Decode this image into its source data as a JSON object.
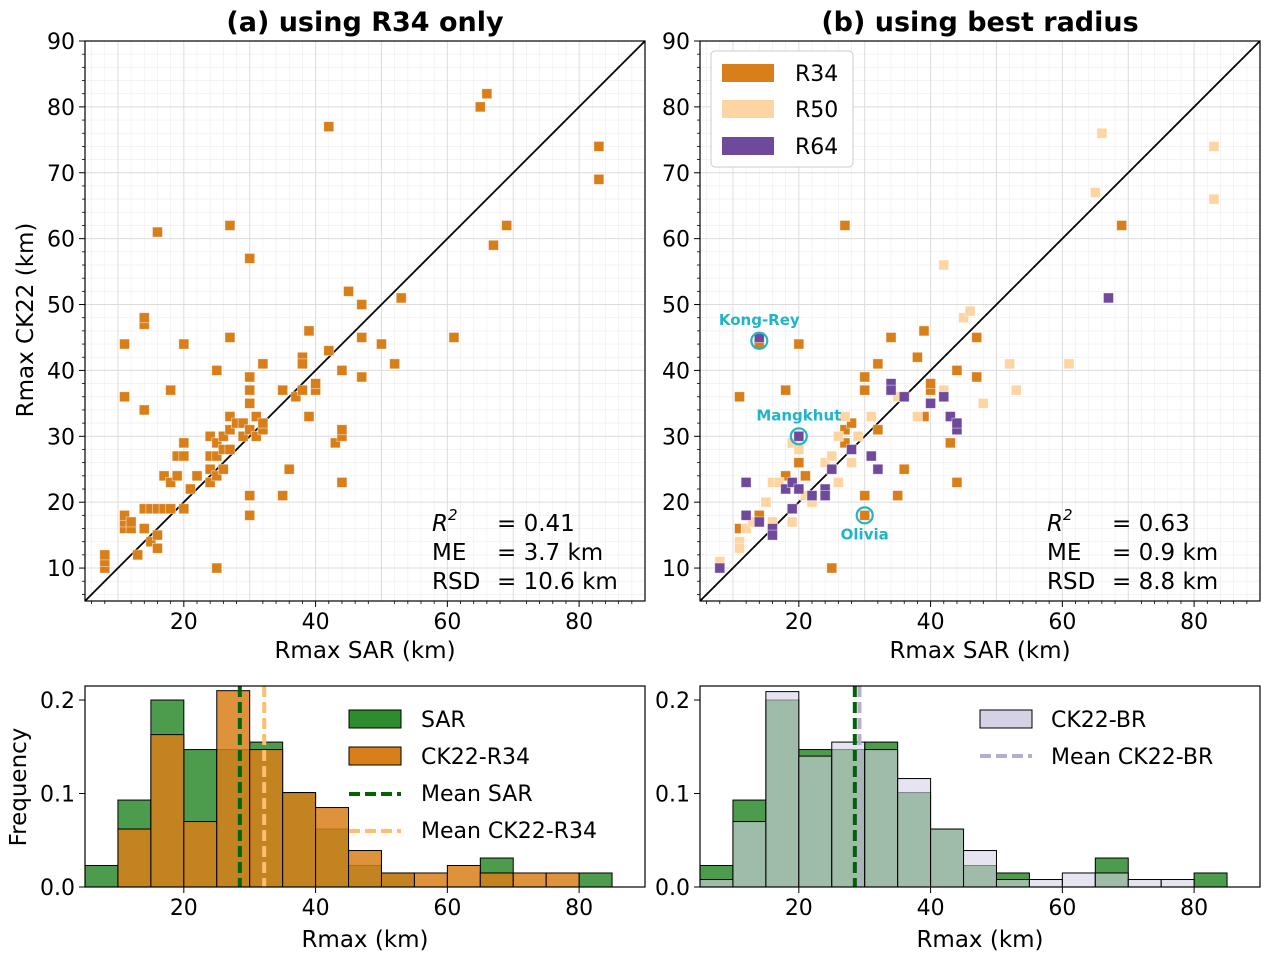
{
  "colors": {
    "r34": "#d87f1a",
    "r50": "#fdd5a2",
    "r64": "#6f4a9c",
    "sar": "#2e8b2e",
    "ck22br": "#d6d2e6",
    "annot": "#1fb5c8",
    "mean_sar": "#006400",
    "mean_r34": "#fdbf6f",
    "mean_br": "#b4aecf"
  },
  "chart_data": [
    {
      "type": "scatter",
      "title": "(a) using R34 only",
      "xlabel": "Rmax SAR (km)",
      "ylabel": "Rmax CK22 (km)",
      "xlim": [
        5,
        90
      ],
      "ylim": [
        5,
        90
      ],
      "xticks": [
        "20",
        "40",
        "60",
        "80"
      ],
      "yticks": [
        "10",
        "20",
        "30",
        "40",
        "50",
        "60",
        "70",
        "80",
        "90"
      ],
      "grid": true,
      "reference_line": "y = x",
      "series": [
        {
          "name": "R34",
          "points": [
            [
              8,
              10
            ],
            [
              8,
              11
            ],
            [
              8,
              12
            ],
            [
              11,
              16
            ],
            [
              11,
              17
            ],
            [
              11,
              18
            ],
            [
              12,
              16
            ],
            [
              12,
              17
            ],
            [
              13,
              12
            ],
            [
              14,
              16
            ],
            [
              14,
              19
            ],
            [
              15,
              14
            ],
            [
              15,
              19
            ],
            [
              16,
              13
            ],
            [
              16,
              15
            ],
            [
              16,
              19
            ],
            [
              17,
              19
            ],
            [
              17,
              24
            ],
            [
              18,
              19
            ],
            [
              18,
              23
            ],
            [
              19,
              27
            ],
            [
              19,
              24
            ],
            [
              20,
              19
            ],
            [
              20,
              27
            ],
            [
              20,
              29
            ],
            [
              21,
              22
            ],
            [
              22,
              24
            ],
            [
              24,
              23
            ],
            [
              24,
              25
            ],
            [
              24,
              27
            ],
            [
              24,
              30
            ],
            [
              25,
              24
            ],
            [
              25,
              27
            ],
            [
              25,
              29
            ],
            [
              26,
              25
            ],
            [
              26,
              28
            ],
            [
              26,
              30
            ],
            [
              27,
              28
            ],
            [
              27,
              31
            ],
            [
              27,
              33
            ],
            [
              28,
              32
            ],
            [
              29,
              30
            ],
            [
              29,
              32
            ],
            [
              30,
              31
            ],
            [
              30,
              35
            ],
            [
              30,
              37
            ],
            [
              30,
              39
            ],
            [
              31,
              30
            ],
            [
              31,
              33
            ],
            [
              32,
              31
            ],
            [
              32,
              32
            ],
            [
              35,
              37
            ],
            [
              36,
              25
            ],
            [
              37,
              36
            ],
            [
              38,
              42
            ],
            [
              38,
              37
            ],
            [
              39,
              33
            ],
            [
              39,
              46
            ],
            [
              40,
              37
            ],
            [
              40,
              38
            ],
            [
              42,
              43
            ],
            [
              43,
              29
            ],
            [
              44,
              23
            ],
            [
              44,
              30
            ],
            [
              44,
              31
            ],
            [
              44,
              40
            ],
            [
              47,
              39
            ],
            [
              47,
              45
            ],
            [
              47,
              50
            ],
            [
              50,
              44
            ],
            [
              52,
              41
            ],
            [
              53,
              51
            ],
            [
              61,
              45
            ],
            [
              65,
              80
            ],
            [
              66,
              82
            ],
            [
              67,
              59
            ],
            [
              69,
              62
            ],
            [
              83,
              69
            ],
            [
              83,
              74
            ],
            [
              11,
              36
            ],
            [
              11,
              44
            ],
            [
              14,
              34
            ],
            [
              14,
              47
            ],
            [
              14,
              48
            ],
            [
              16,
              61
            ],
            [
              18,
              37
            ],
            [
              20,
              44
            ],
            [
              25,
              10
            ],
            [
              25,
              40
            ],
            [
              27,
              45
            ],
            [
              27,
              62
            ],
            [
              30,
              57
            ],
            [
              30,
              18
            ],
            [
              30,
              21
            ],
            [
              32,
              41
            ],
            [
              35,
              21
            ],
            [
              38,
              41
            ],
            [
              42,
              77
            ],
            [
              45,
              52
            ]
          ]
        }
      ],
      "stats": {
        "r2_label": "R",
        "r2_sup": "2",
        "r2_value": "= 0.41",
        "me_label": "ME",
        "me_value": "= 3.7 km",
        "rsd_label": "RSD",
        "rsd_value": "= 10.6 km"
      }
    },
    {
      "type": "scatter",
      "title": "(b) using best radius",
      "xlabel": "Rmax SAR (km)",
      "xlim": [
        5,
        90
      ],
      "ylim": [
        5,
        90
      ],
      "xticks": [
        "20",
        "40",
        "60",
        "80"
      ],
      "yticks": [
        "10",
        "20",
        "30",
        "40",
        "50",
        "60",
        "70",
        "80",
        "90"
      ],
      "grid": true,
      "reference_line": "y = x",
      "legend_position": "upper-left",
      "series": [
        {
          "name": "R34",
          "points": [
            [
              11,
              16
            ],
            [
              11,
              36
            ],
            [
              14,
              18
            ],
            [
              14,
              44
            ],
            [
              18,
              37
            ],
            [
              18,
              24
            ],
            [
              20,
              26
            ],
            [
              20,
              44
            ],
            [
              21,
              24
            ],
            [
              25,
              10
            ],
            [
              27,
              29
            ],
            [
              27,
              62
            ],
            [
              27,
              31
            ],
            [
              28,
              32
            ],
            [
              30,
              37
            ],
            [
              30,
              39
            ],
            [
              30,
              21
            ],
            [
              30,
              18
            ],
            [
              32,
              41
            ],
            [
              32,
              31
            ],
            [
              34,
              45
            ],
            [
              35,
              21
            ],
            [
              36,
              25
            ],
            [
              38,
              42
            ],
            [
              39,
              33
            ],
            [
              39,
              46
            ],
            [
              40,
              37
            ],
            [
              40,
              38
            ],
            [
              43,
              29
            ],
            [
              44,
              23
            ],
            [
              44,
              40
            ],
            [
              47,
              39
            ],
            [
              47,
              45
            ],
            [
              69,
              62
            ]
          ]
        },
        {
          "name": "R50",
          "points": [
            [
              8,
              10
            ],
            [
              8,
              11
            ],
            [
              11,
              14
            ],
            [
              11,
              13
            ],
            [
              12,
              16
            ],
            [
              13,
              17
            ],
            [
              15,
              20
            ],
            [
              16,
              17
            ],
            [
              16,
              23
            ],
            [
              17,
              23
            ],
            [
              19,
              17
            ],
            [
              19,
              29
            ],
            [
              20,
              28
            ],
            [
              21,
              21
            ],
            [
              22,
              20
            ],
            [
              24,
              26
            ],
            [
              25,
              27
            ],
            [
              25,
              25
            ],
            [
              26,
              30
            ],
            [
              26,
              23
            ],
            [
              27,
              33
            ],
            [
              28,
              26
            ],
            [
              29,
              30
            ],
            [
              31,
              33
            ],
            [
              35,
              36
            ],
            [
              38,
              33
            ],
            [
              42,
              37
            ],
            [
              42,
              56
            ],
            [
              45,
              48
            ],
            [
              46,
              49
            ],
            [
              48,
              35
            ],
            [
              52,
              41
            ],
            [
              53,
              37
            ],
            [
              61,
              41
            ],
            [
              65,
              67
            ],
            [
              66,
              76
            ],
            [
              83,
              66
            ],
            [
              83,
              74
            ]
          ]
        },
        {
          "name": "R64",
          "points": [
            [
              8,
              10
            ],
            [
              12,
              18
            ],
            [
              12,
              23
            ],
            [
              14,
              17
            ],
            [
              14,
              45
            ],
            [
              16,
              16
            ],
            [
              16,
              15
            ],
            [
              18,
              22
            ],
            [
              19,
              23
            ],
            [
              19,
              19
            ],
            [
              20,
              30
            ],
            [
              20,
              22
            ],
            [
              22,
              21
            ],
            [
              24,
              22
            ],
            [
              24,
              21
            ],
            [
              25,
              25
            ],
            [
              28,
              28
            ],
            [
              31,
              27
            ],
            [
              32,
              25
            ],
            [
              34,
              38
            ],
            [
              34,
              37
            ],
            [
              36,
              36
            ],
            [
              40,
              35
            ],
            [
              42,
              36
            ],
            [
              43,
              33
            ],
            [
              44,
              31
            ],
            [
              44,
              32
            ],
            [
              67,
              51
            ]
          ]
        }
      ],
      "annotations": [
        {
          "text": "Kong-Rey",
          "x": 14,
          "y": 44.5
        },
        {
          "text": "Mangkhut",
          "x": 20,
          "y": 30
        },
        {
          "text": "Olivia",
          "x": 30,
          "y": 18
        }
      ],
      "stats": {
        "r2_label": "R",
        "r2_sup": "2",
        "r2_value": "= 0.63",
        "me_label": "ME",
        "me_value": "= 0.9 km",
        "rsd_label": "RSD",
        "rsd_value": "= 8.8 km"
      }
    },
    {
      "type": "bar",
      "subtype": "histogram",
      "xlabel": "Rmax (km)",
      "ylabel": "Frequency",
      "xlim": [
        5,
        90
      ],
      "ylim": [
        0,
        0.215
      ],
      "xticks": [
        "20",
        "40",
        "60",
        "80"
      ],
      "yticks": [
        "0.0",
        "0.1",
        "0.2"
      ],
      "legend_position": "upper-right",
      "bin_edges": [
        5,
        10,
        15,
        20,
        25,
        30,
        35,
        40,
        45,
        50,
        55,
        60,
        65,
        70,
        75,
        80,
        85
      ],
      "series": [
        {
          "name": "SAR",
          "values": [
            0.023,
            0.093,
            0.2,
            0.147,
            0.147,
            0.155,
            0.101,
            0.062,
            0.023,
            0.015,
            0.0,
            0.0,
            0.031,
            0.0,
            0.0,
            0.015
          ]
        },
        {
          "name": "CK22-R34",
          "values": [
            0.0,
            0.062,
            0.163,
            0.07,
            0.21,
            0.147,
            0.101,
            0.085,
            0.039,
            0.015,
            0.015,
            0.023,
            0.015,
            0.015,
            0.015,
            0.0
          ]
        }
      ],
      "means": [
        {
          "name": "Mean SAR",
          "x": 28.5
        },
        {
          "name": "Mean CK22-R34",
          "x": 32.2
        }
      ]
    },
    {
      "type": "bar",
      "subtype": "histogram",
      "xlabel": "Rmax (km)",
      "xlim": [
        5,
        90
      ],
      "ylim": [
        0,
        0.215
      ],
      "xticks": [
        "20",
        "40",
        "60",
        "80"
      ],
      "yticks": [
        "0.0",
        "0.1",
        "0.2"
      ],
      "legend_position": "upper-right",
      "bin_edges": [
        5,
        10,
        15,
        20,
        25,
        30,
        35,
        40,
        45,
        50,
        55,
        60,
        65,
        70,
        75,
        80,
        85
      ],
      "series": [
        {
          "name": "SAR",
          "values": [
            0.023,
            0.093,
            0.2,
            0.147,
            0.147,
            0.155,
            0.101,
            0.062,
            0.023,
            0.015,
            0.0,
            0.0,
            0.031,
            0.0,
            0.0,
            0.015
          ]
        },
        {
          "name": "CK22-BR",
          "values": [
            0.008,
            0.07,
            0.209,
            0.14,
            0.155,
            0.147,
            0.116,
            0.062,
            0.039,
            0.008,
            0.008,
            0.015,
            0.015,
            0.008,
            0.008,
            0.0
          ]
        }
      ],
      "means": [
        {
          "name": "Mean SAR",
          "x": 28.5
        },
        {
          "name": "Mean CK22-BR",
          "x": 29.2
        }
      ]
    }
  ]
}
